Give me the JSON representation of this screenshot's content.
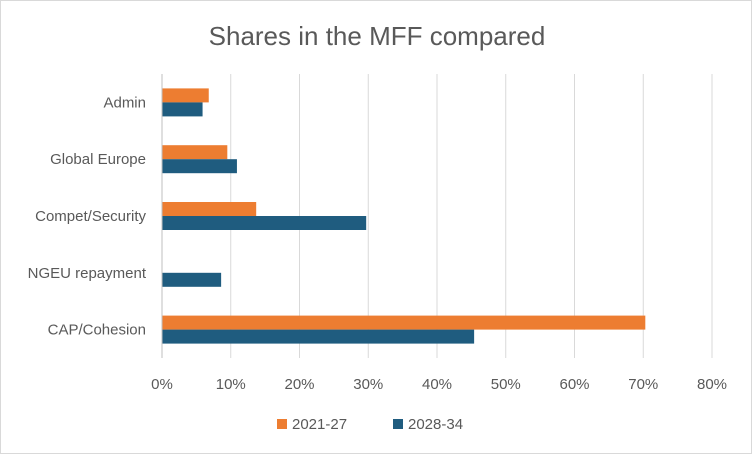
{
  "chart_data": {
    "type": "bar",
    "orientation": "horizontal",
    "title": "Shares in the MFF compared",
    "xlabel": "",
    "ylabel": "",
    "categories": [
      "Admin",
      "Global Europe",
      "Compet/Security",
      "NGEU repayment",
      "CAP/Cohesion"
    ],
    "series": [
      {
        "name": "2021-27",
        "color": "#ED7D31",
        "values": [
          6.8,
          9.5,
          13.7,
          0,
          70.3
        ]
      },
      {
        "name": "2028-34",
        "color": "#1F5C7F",
        "values": [
          5.9,
          10.9,
          29.7,
          8.6,
          45.4
        ]
      }
    ],
    "xlim": [
      0,
      80
    ],
    "xticks": [
      0,
      10,
      20,
      30,
      40,
      50,
      60,
      70,
      80
    ],
    "xtick_labels": [
      "0%",
      "10%",
      "20%",
      "30%",
      "40%",
      "50%",
      "60%",
      "70%",
      "80%"
    ],
    "grid": true,
    "legend_position": "bottom"
  }
}
